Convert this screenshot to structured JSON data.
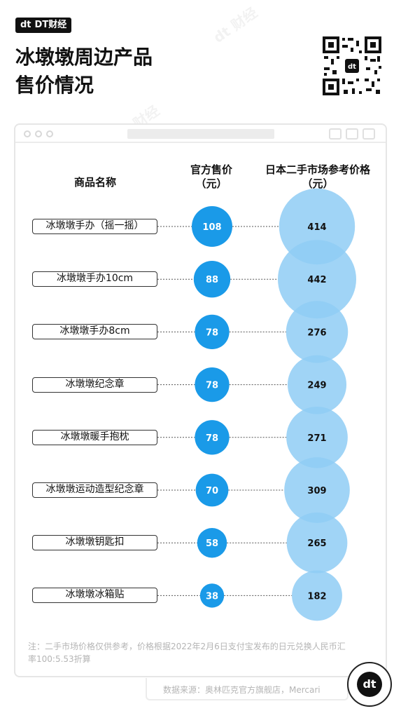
{
  "brand": {
    "name": "DT财经",
    "logo_mark": "dt"
  },
  "title": {
    "line1": "冰墩墩周边产品",
    "line2": "售价情况"
  },
  "headers": {
    "name": "商品名称",
    "official_line1": "官方售价",
    "official_line2": "（元）",
    "japan_line1": "日本二手市场参考价格",
    "japan_line2": "（元）"
  },
  "chart_data": {
    "type": "bubble",
    "categories": [
      "冰墩墩手办（摇一摇）",
      "冰墩墩手办10cm",
      "冰墩墩手办8cm",
      "冰墩墩纪念章",
      "冰墩墩暖手抱枕",
      "冰墩墩运动造型纪念章",
      "冰墩墩钥匙扣",
      "冰墩墩冰箱贴"
    ],
    "official_price": [
      108,
      88,
      78,
      78,
      78,
      70,
      58,
      38
    ],
    "japan_price": [
      414,
      442,
      276,
      249,
      271,
      309,
      265,
      182
    ],
    "colors": {
      "official": "#1a9ae8",
      "japan": "#8fcdf5"
    }
  },
  "note": "注：二手市场价格仅供参考，价格根据2022年2月6日支付宝发布的日元兑换人民币汇率100:5.53折算",
  "source": "数据来源：奥林匹克官方旗舰店，Mercari",
  "icons": {
    "qr": "qr-code-icon",
    "badge": "dt-logo-icon"
  }
}
